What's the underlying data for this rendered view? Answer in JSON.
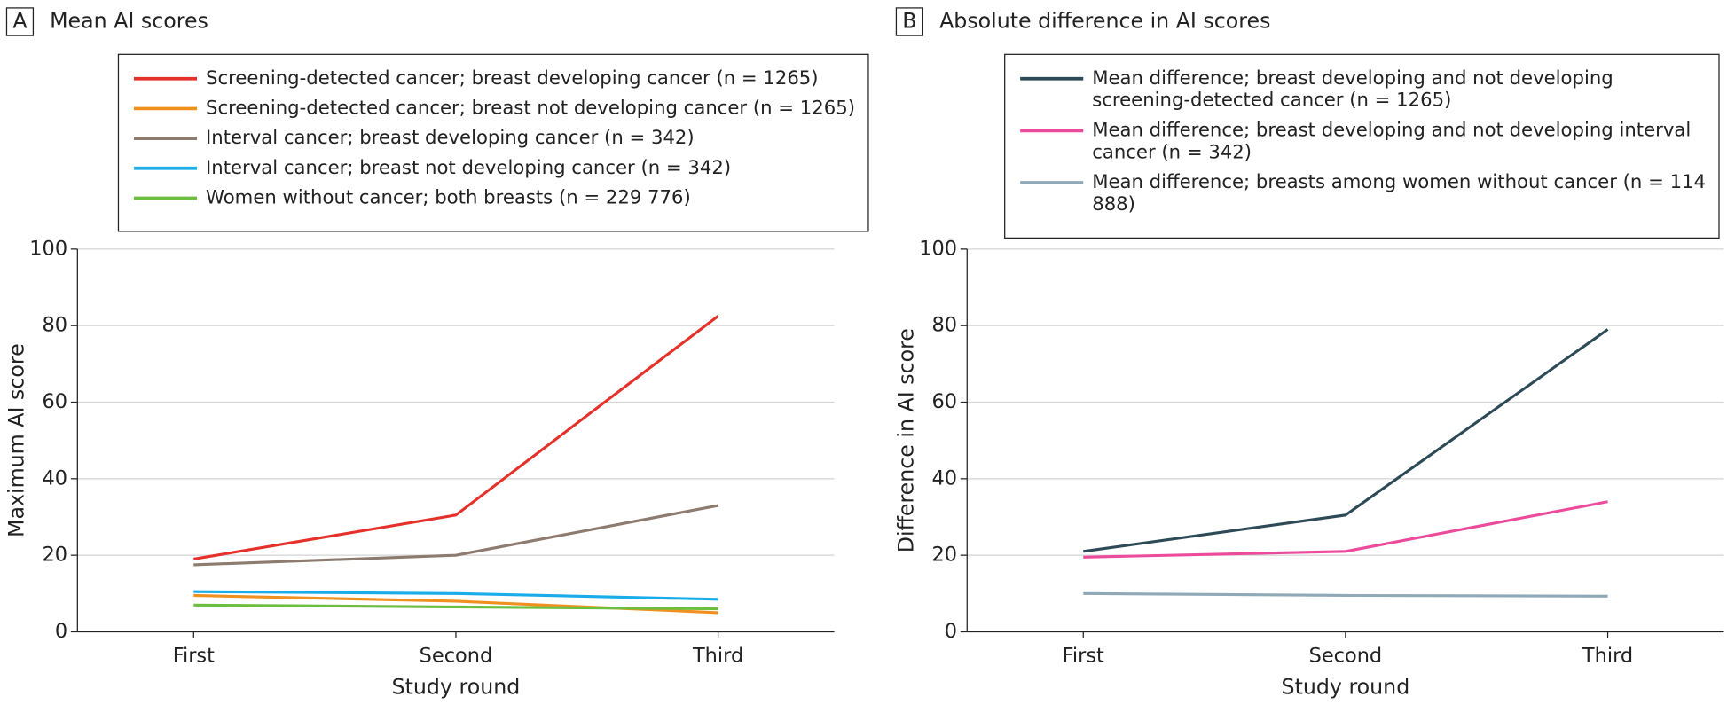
{
  "chart_data": [
    {
      "type": "line",
      "panel_label": "A",
      "title": "Mean AI scores",
      "categories": [
        "First",
        "Second",
        "Third"
      ],
      "series": [
        {
          "name": "Screening-detected cancer; breast developing cancer (n = 1265)",
          "color": "#e4322b",
          "values": [
            19,
            30.5,
            82.5
          ]
        },
        {
          "name": "Screening-detected cancer; breast not developing cancer (n = 1265)",
          "color": "#f0901e",
          "values": [
            9.5,
            8,
            5
          ]
        },
        {
          "name": "Interval cancer; breast developing cancer (n = 342)",
          "color": "#8c7b6e",
          "values": [
            17.5,
            20,
            33
          ]
        },
        {
          "name": "Interval cancer; breast not developing cancer (n = 342)",
          "color": "#1aace8",
          "values": [
            10.5,
            10,
            8.5
          ]
        },
        {
          "name": "Women without cancer; both breasts (n = 229 776)",
          "color": "#6cbf3e",
          "values": [
            7,
            6.5,
            6
          ]
        }
      ],
      "ylim": [
        0,
        100
      ],
      "yticks": [
        0,
        20,
        40,
        60,
        80,
        100
      ],
      "grid": true,
      "xlabel": "Study round",
      "ylabel": "Maximum AI score"
    },
    {
      "type": "line",
      "panel_label": "B",
      "title": "Absolute difference in AI scores",
      "categories": [
        "First",
        "Second",
        "Third"
      ],
      "series": [
        {
          "name": "Mean difference; breast developing and not developing screening-detected cancer (n = 1265)",
          "color": "#2d4a57",
          "values": [
            21,
            30.5,
            79
          ]
        },
        {
          "name": "Mean difference; breast developing and not developing interval cancer (n = 342)",
          "color": "#ec4b9b",
          "values": [
            19.5,
            21,
            34
          ]
        },
        {
          "name": "Mean difference; breasts among women without cancer (n = 114 888)",
          "color": "#8fa9b7",
          "values": [
            10,
            9.5,
            9.3
          ]
        }
      ],
      "ylim": [
        0,
        100
      ],
      "yticks": [
        0,
        20,
        40,
        60,
        80,
        100
      ],
      "grid": true,
      "xlabel": "Study round",
      "ylabel": "Difference in AI score"
    }
  ]
}
